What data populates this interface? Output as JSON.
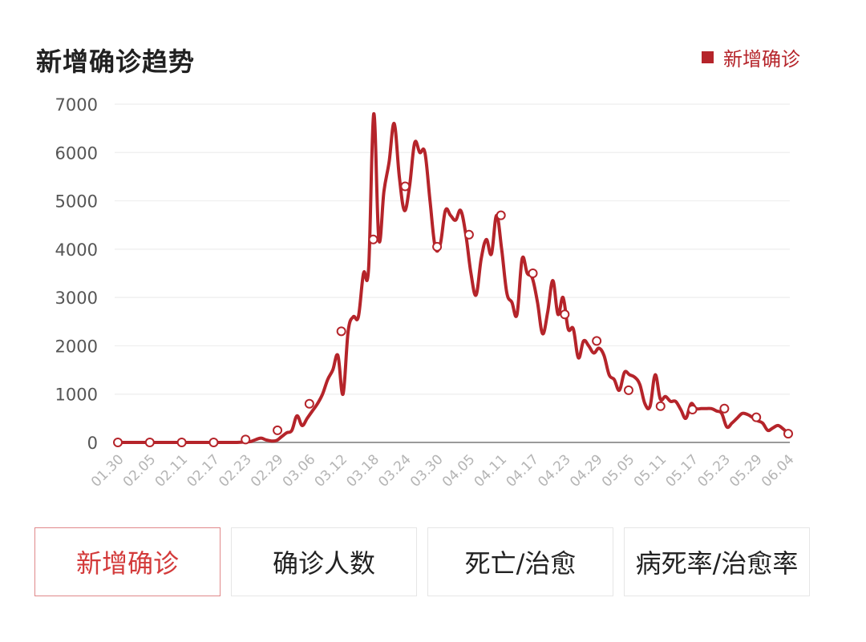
{
  "header": {
    "title": "新增确诊趋势"
  },
  "legend": {
    "label": "新增确诊",
    "color": "#b5242a"
  },
  "tabs": [
    {
      "label": "新增确诊",
      "active": true
    },
    {
      "label": "确诊人数",
      "active": false
    },
    {
      "label": "死亡/治愈",
      "active": false
    },
    {
      "label": "病死率/治愈率",
      "active": false
    }
  ],
  "chart_data": {
    "type": "line",
    "title": "新增确诊趋势",
    "xlabel": "",
    "ylabel": "",
    "ylim": [
      0,
      7000
    ],
    "yticks": [
      0,
      1000,
      2000,
      3000,
      4000,
      5000,
      6000,
      7000
    ],
    "grid": true,
    "legend_position": "top-right",
    "xtick_labels": [
      "01.30",
      "02.05",
      "02.11",
      "02.17",
      "02.23",
      "02.29",
      "03.06",
      "03.12",
      "03.18",
      "03.24",
      "03.30",
      "04.05",
      "04.11",
      "04.17",
      "04.23",
      "04.29",
      "05.05",
      "05.11",
      "05.17",
      "05.23",
      "05.29",
      "06.04"
    ],
    "series": [
      {
        "name": "新增确诊",
        "color": "#b5242a",
        "values": [
          0,
          0,
          0,
          0,
          0,
          0,
          0,
          0,
          0,
          0,
          0,
          0,
          0,
          0,
          0,
          0,
          0,
          0,
          0,
          0,
          0,
          0,
          0,
          0,
          5,
          10,
          20,
          60,
          90,
          50,
          30,
          40,
          120,
          200,
          250,
          550,
          350,
          500,
          650,
          800,
          1000,
          1300,
          1500,
          1800,
          1000,
          2300,
          2600,
          2600,
          3500,
          3600,
          6800,
          4200,
          5200,
          5800,
          6600,
          5500,
          4800,
          5300,
          6200,
          6000,
          6000,
          5000,
          4050,
          4100,
          4800,
          4700,
          4600,
          4800,
          4300,
          3500,
          3050,
          3800,
          4200,
          3900,
          4700,
          4000,
          3100,
          2900,
          2650,
          3800,
          3500,
          3400,
          2900,
          2250,
          2700,
          3350,
          2650,
          3000,
          2350,
          2350,
          1750,
          2100,
          2000,
          1850,
          1950,
          1800,
          1400,
          1300,
          1080,
          1450,
          1400,
          1350,
          1200,
          800,
          750,
          1400,
          900,
          950,
          850,
          850,
          680,
          500,
          800,
          700,
          700,
          700,
          700,
          650,
          600,
          320,
          400,
          500,
          600,
          580,
          520,
          450,
          400,
          250,
          300,
          350,
          280,
          180
        ],
        "marked_points": [
          {
            "x": "01.30",
            "y": 0
          },
          {
            "x": "02.05",
            "y": 0
          },
          {
            "x": "02.11",
            "y": 0
          },
          {
            "x": "02.17",
            "y": 0
          },
          {
            "x": "02.23",
            "y": 60
          },
          {
            "x": "02.29",
            "y": 250
          },
          {
            "x": "03.06",
            "y": 800
          },
          {
            "x": "03.12",
            "y": 2300
          },
          {
            "x": "03.18",
            "y": 4200
          },
          {
            "x": "03.24",
            "y": 5300
          },
          {
            "x": "03.30",
            "y": 4050
          },
          {
            "x": "04.05",
            "y": 4300
          },
          {
            "x": "04.11",
            "y": 4700
          },
          {
            "x": "04.17",
            "y": 3500
          },
          {
            "x": "04.23",
            "y": 2650
          },
          {
            "x": "04.29",
            "y": 2100
          },
          {
            "x": "05.05",
            "y": 1080
          },
          {
            "x": "05.11",
            "y": 750
          },
          {
            "x": "05.17",
            "y": 680
          },
          {
            "x": "05.23",
            "y": 700
          },
          {
            "x": "05.29",
            "y": 520
          },
          {
            "x": "06.04",
            "y": 180
          }
        ]
      }
    ]
  }
}
